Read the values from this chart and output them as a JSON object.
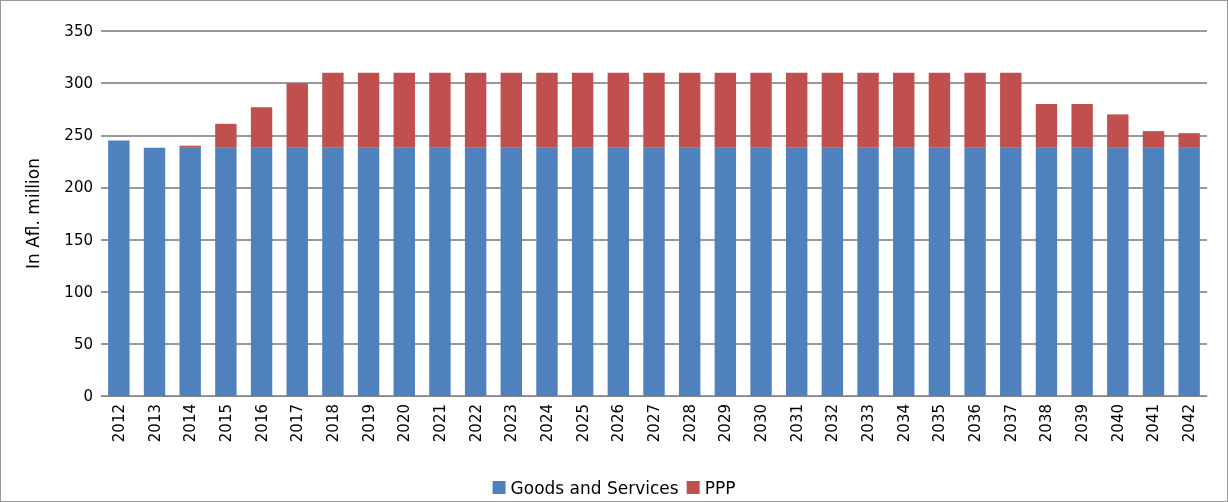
{
  "chart_data": {
    "type": "bar",
    "stacked": true,
    "ylabel": "In Afl. million",
    "categories": [
      "2012",
      "2013",
      "2014",
      "2015",
      "2016",
      "2017",
      "2018",
      "2019",
      "2020",
      "2021",
      "2022",
      "2023",
      "2024",
      "2025",
      "2026",
      "2027",
      "2028",
      "2029",
      "2030",
      "2031",
      "2032",
      "2033",
      "2034",
      "2035",
      "2036",
      "2037",
      "2038",
      "2039",
      "2040",
      "2041",
      "2042"
    ],
    "series": [
      {
        "name": "Goods and Services",
        "color": "#4f81bd",
        "values": [
          245,
          238,
          238,
          238,
          238,
          238,
          238,
          238,
          238,
          238,
          238,
          238,
          238,
          238,
          238,
          238,
          238,
          238,
          238,
          238,
          238,
          238,
          238,
          238,
          238,
          238,
          238,
          238,
          238,
          238,
          238
        ]
      },
      {
        "name": "PPP",
        "color": "#c0504d",
        "values": [
          0,
          0,
          2,
          23,
          39,
          62,
          72,
          72,
          72,
          72,
          72,
          72,
          72,
          72,
          72,
          72,
          72,
          72,
          72,
          72,
          72,
          72,
          72,
          72,
          72,
          72,
          42,
          42,
          32,
          16,
          14
        ]
      }
    ],
    "ylim": [
      0,
      350
    ],
    "yticks": [
      0,
      50,
      100,
      150,
      200,
      250,
      300,
      350
    ],
    "grid": "y",
    "legend": "bottom"
  }
}
